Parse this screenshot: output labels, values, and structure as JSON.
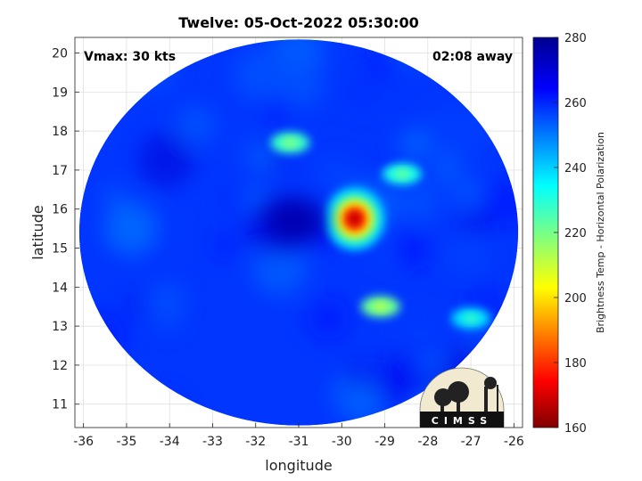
{
  "chart_data": {
    "type": "heatmap",
    "title": "Twelve: 05-Oct-2022 05:30:00",
    "xlabel": "longitude",
    "ylabel": "latitude",
    "xlim": [
      -36.2,
      -25.8
    ],
    "ylim": [
      10.4,
      20.4
    ],
    "x_ticks": [
      "-36",
      "-35",
      "-34",
      "-33",
      "-32",
      "-31",
      "-30",
      "-29",
      "-28",
      "-27",
      "-26"
    ],
    "x_tick_values": [
      -36,
      -35,
      -34,
      -33,
      -32,
      -31,
      -30,
      -29,
      -28,
      -27,
      -26
    ],
    "y_ticks": [
      "20",
      "19",
      "18",
      "17",
      "16",
      "15",
      "14",
      "13",
      "12",
      "11"
    ],
    "y_tick_values": [
      20,
      19,
      18,
      17,
      16,
      15,
      14,
      13,
      12,
      11
    ],
    "grid": true,
    "annotations": {
      "vmax": "Vmax: 30 kts",
      "time_away": "02:08 away"
    },
    "colorbar": {
      "label": "Brightness Temp - Horizontal Polarization",
      "range": [
        160,
        280
      ],
      "ticks": [
        "280",
        "260",
        "240",
        "220",
        "200",
        "180",
        "160"
      ],
      "tick_values": [
        280,
        260,
        240,
        220,
        200,
        180,
        160
      ],
      "colormap": "jet"
    },
    "swath": {
      "center_lon": -31.0,
      "center_lat": 15.4,
      "radius_lon": 5.1,
      "radius_lat": 4.95
    },
    "background_value": 258,
    "features": [
      {
        "lon": -29.7,
        "lat": 15.75,
        "value": 165
      },
      {
        "lon": -31.1,
        "lat": 15.7,
        "value": 275
      },
      {
        "lon": -31.2,
        "lat": 17.7,
        "value": 228
      },
      {
        "lon": -28.6,
        "lat": 16.9,
        "value": 232
      },
      {
        "lon": -29.1,
        "lat": 13.5,
        "value": 222
      },
      {
        "lon": -27.0,
        "lat": 13.2,
        "value": 238
      }
    ],
    "logo_text": "CIMSS"
  }
}
